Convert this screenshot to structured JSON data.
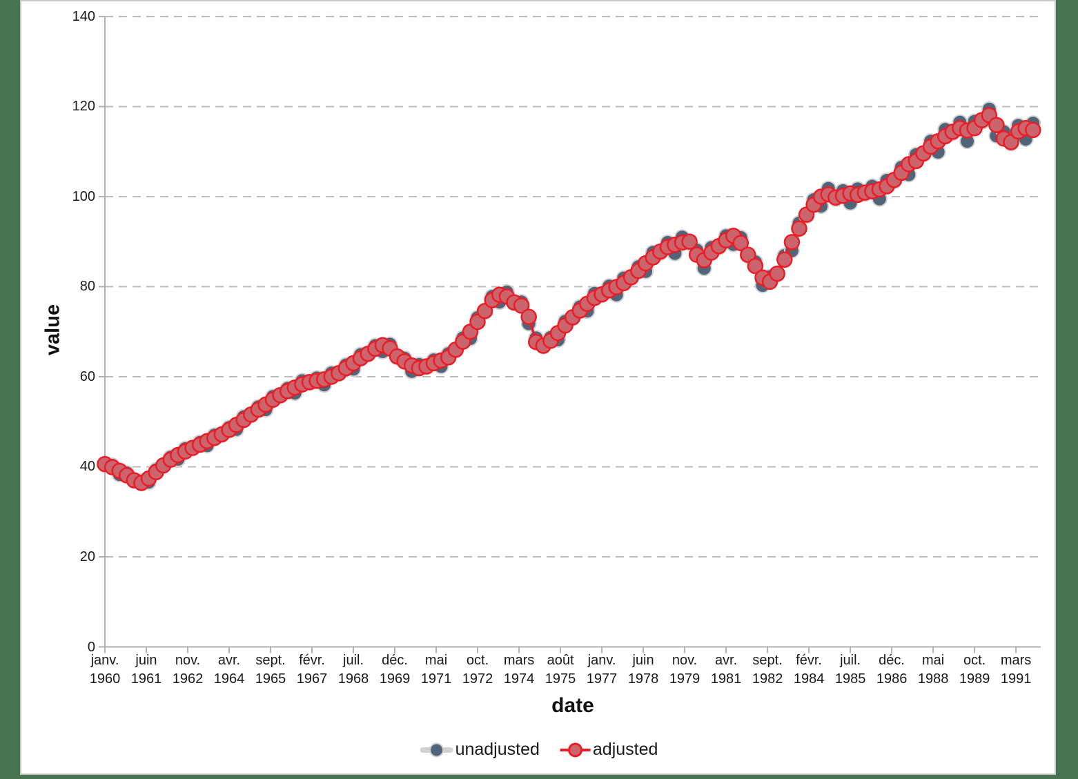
{
  "page": {
    "background_color": "#487350",
    "panel_background": "#ffffff",
    "panel_border_color": "#c7c7c7"
  },
  "chart_data": {
    "type": "line",
    "title": "",
    "xlabel": "date",
    "ylabel": "value",
    "frequency": "quarterly",
    "x_start": "1960Q1",
    "x_end": "1991Q4",
    "ylim": [
      0,
      140
    ],
    "y_ticks": [
      0,
      20,
      40,
      60,
      80,
      100,
      120,
      140
    ],
    "grid": "horizontal-dashed",
    "grid_color": "#bcbcbc",
    "axis_color": "#b0b0b0",
    "legend_position": "bottom-center",
    "x_ticks": [
      {
        "month": "janv.",
        "year": "1960",
        "m": 0
      },
      {
        "month": "juin",
        "year": "1961",
        "m": 17
      },
      {
        "month": "nov.",
        "year": "1962",
        "m": 34
      },
      {
        "month": "avr.",
        "year": "1964",
        "m": 51
      },
      {
        "month": "sept.",
        "year": "1965",
        "m": 68
      },
      {
        "month": "févr.",
        "year": "1967",
        "m": 85
      },
      {
        "month": "juil.",
        "year": "1968",
        "m": 102
      },
      {
        "month": "déc.",
        "year": "1969",
        "m": 119
      },
      {
        "month": "mai",
        "year": "1971",
        "m": 136
      },
      {
        "month": "oct.",
        "year": "1972",
        "m": 153
      },
      {
        "month": "mars",
        "year": "1974",
        "m": 170
      },
      {
        "month": "août",
        "year": "1975",
        "m": 187
      },
      {
        "month": "janv.",
        "year": "1977",
        "m": 204
      },
      {
        "month": "juin",
        "year": "1978",
        "m": 221
      },
      {
        "month": "nov.",
        "year": "1979",
        "m": 238
      },
      {
        "month": "avr.",
        "year": "1981",
        "m": 255
      },
      {
        "month": "sept.",
        "year": "1982",
        "m": 272
      },
      {
        "month": "févr.",
        "year": "1984",
        "m": 289
      },
      {
        "month": "juil.",
        "year": "1985",
        "m": 306
      },
      {
        "month": "déc.",
        "year": "1986",
        "m": 323
      },
      {
        "month": "mai",
        "year": "1988",
        "m": 340
      },
      {
        "month": "oct.",
        "year": "1989",
        "m": 357
      },
      {
        "month": "mars",
        "year": "1991",
        "m": 374
      }
    ],
    "series": [
      {
        "name": "unadjusted",
        "line_color": "#d2d2d2",
        "marker_color": "#506579",
        "marker_stroke": "#d2d2d2",
        "values": [
          40.5,
          40.3,
          38.3,
          38.6,
          36.9,
          36.8,
          36.6,
          39.3,
          40.2,
          42.1,
          41.7,
          44.0,
          44.1,
          45.4,
          44.7,
          47.0,
          47.1,
          48.7,
          48.3,
          51.1,
          51.4,
          53.3,
          52.7,
          55.6,
          55.7,
          57.4,
          56.4,
          59.1,
          58.6,
          59.7,
          58.2,
          60.8,
          60.6,
          62.6,
          61.7,
          64.9,
          64.9,
          66.9,
          65.6,
          67.2,
          64.3,
          64.1,
          61.2,
          62.7,
          62.1,
          63.7,
          62.3,
          65.1,
          65.8,
          68.6,
          68.5,
          73.1,
          74.4,
          77.8,
          76.6,
          78.8,
          76.3,
          76.6,
          71.8,
          68.6,
          66.7,
          68.7,
          68.2,
          72.3,
          73.0,
          75.5,
          74.6,
          78.5,
          78.1,
          80.1,
          78.2,
          81.9,
          81.9,
          84.4,
          83.4,
          87.6,
          87.5,
          89.8,
          87.4,
          91.0,
          89.7,
          88.1,
          84.1,
          88.7,
          88.7,
          91.3,
          89.4,
          90.9,
          86.8,
          85.5,
          80.3,
          82.2,
          82.7,
          86.9,
          88.0,
          94.1,
          95.7,
          99.3,
          97.9,
          101.8,
          99.5,
          101.3,
          98.6,
          101.7,
          100.6,
          102.3,
          99.5,
          103.6,
          103.4,
          106.5,
          104.9,
          109.3,
          109.3,
          112.3,
          109.9,
          114.9,
          114.1,
          116.5,
          112.3,
          116.7,
          116.6,
          119.4,
          113.5,
          114.4,
          111.8,
          115.8,
          112.8,
          116.3
        ]
      },
      {
        "name": "adjusted",
        "line_color": "#ec1c24",
        "marker_color": "#ca656e",
        "marker_stroke": "#ec1c24",
        "values": [
          40.6,
          39.9,
          39.1,
          38.1,
          37.0,
          36.4,
          37.4,
          38.8,
          40.3,
          41.6,
          42.6,
          43.4,
          44.2,
          44.9,
          45.7,
          46.4,
          47.2,
          48.2,
          49.3,
          50.4,
          51.6,
          52.7,
          53.8,
          54.9,
          55.9,
          56.8,
          57.6,
          58.3,
          58.8,
          59.1,
          59.4,
          60.0,
          60.8,
          61.9,
          63.0,
          64.1,
          65.1,
          66.2,
          67.0,
          66.3,
          64.5,
          63.4,
          62.5,
          61.9,
          62.3,
          63.0,
          63.6,
          64.3,
          66.0,
          67.8,
          70.0,
          72.2,
          74.6,
          77.0,
          78.2,
          77.8,
          76.5,
          75.8,
          73.3,
          67.7,
          66.9,
          68.0,
          69.7,
          71.4,
          73.2,
          74.7,
          76.2,
          77.5,
          78.3,
          79.2,
          79.9,
          80.8,
          82.1,
          83.5,
          85.2,
          86.5,
          87.8,
          88.8,
          89.3,
          89.8,
          90.0,
          87.1,
          85.9,
          87.6,
          89.0,
          90.3,
          91.3,
          89.7,
          87.1,
          84.6,
          82.0,
          81.1,
          82.9,
          86.0,
          89.9,
          92.9,
          96.0,
          98.2,
          100.0,
          100.5,
          99.8,
          100.2,
          100.7,
          100.4,
          100.9,
          101.2,
          101.6,
          102.3,
          103.7,
          105.3,
          107.2,
          107.9,
          109.6,
          111.1,
          112.3,
          113.4,
          114.4,
          115.2,
          114.7,
          115.2,
          117.0,
          118.1,
          115.9,
          112.9,
          112.1,
          114.5,
          115.2,
          114.8
        ]
      }
    ]
  }
}
